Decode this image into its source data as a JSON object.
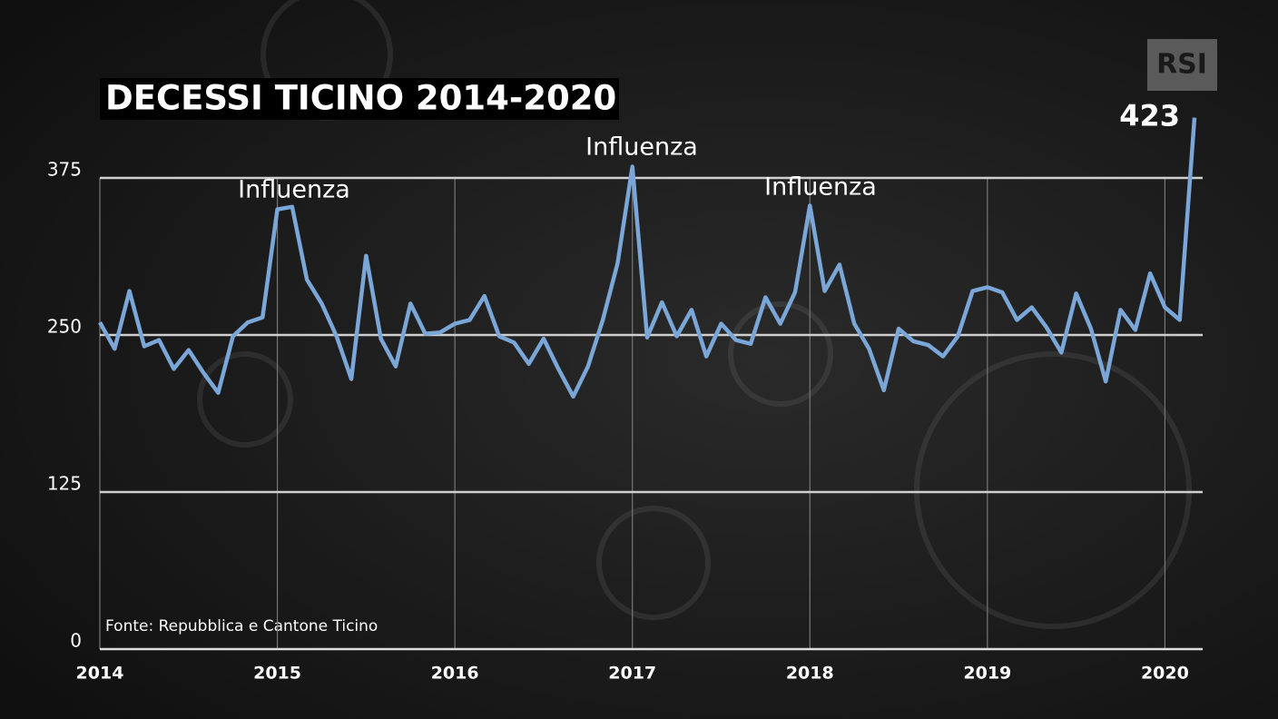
{
  "chart_data": {
    "type": "line",
    "title": "DECESSI TICINO 2014-2020",
    "source": "Fonte: Repubblica e Cantone Ticino",
    "logo": "RSI",
    "annotations": [
      "Influenza",
      "Influenza",
      "Influenza"
    ],
    "categories": [
      "2014",
      null,
      null,
      null,
      null,
      null,
      null,
      null,
      null,
      null,
      null,
      null,
      "2015",
      null,
      null,
      null,
      null,
      null,
      null,
      null,
      null,
      null,
      null,
      null,
      "2016",
      null,
      null,
      null,
      null,
      null,
      null,
      null,
      null,
      null,
      null,
      null,
      "2017",
      null,
      null,
      null,
      null,
      null,
      null,
      null,
      null,
      null,
      null,
      null,
      "2018",
      null,
      null,
      null,
      null,
      null,
      null,
      null,
      null,
      null,
      null,
      null,
      "2019",
      null,
      null,
      null,
      null,
      null,
      null,
      null,
      null,
      null,
      null,
      null,
      "2020",
      null,
      null
    ],
    "series": [
      {
        "name": "Decessi",
        "color": "#7ba6d8",
        "values": [
          260,
          239,
          285,
          241,
          246,
          223,
          238,
          220,
          204,
          249,
          260,
          264,
          350,
          352,
          294,
          275,
          249,
          215,
          313,
          247,
          225,
          275,
          251,
          252,
          259,
          262,
          281,
          249,
          244,
          227,
          247,
          223,
          201,
          225,
          262,
          307,
          384,
          248,
          276,
          249,
          270,
          233,
          259,
          246,
          243,
          280,
          259,
          284,
          353,
          285,
          306,
          259,
          239,
          206,
          255,
          245,
          242,
          233,
          249,
          285,
          288,
          284,
          262,
          272,
          256,
          236,
          283,
          255,
          213,
          270,
          254,
          299,
          272,
          262,
          423
        ],
        "value_labels": [
          null,
          null,
          null,
          null,
          null,
          null,
          null,
          null,
          null,
          null,
          null,
          null,
          null,
          null,
          null,
          null,
          null,
          null,
          null,
          null,
          null,
          null,
          null,
          null,
          null,
          null,
          null,
          null,
          null,
          null,
          null,
          null,
          null,
          null,
          null,
          null,
          null,
          null,
          null,
          null,
          null,
          null,
          null,
          null,
          null,
          null,
          null,
          null,
          null,
          null,
          null,
          null,
          null,
          null,
          null,
          null,
          null,
          null,
          null,
          null,
          null,
          null,
          null,
          null,
          null,
          null,
          null,
          null,
          null,
          null,
          null,
          null,
          null,
          null,
          "423"
        ]
      }
    ],
    "ylim": [
      0,
      375
    ],
    "yticks": [
      0,
      125,
      250,
      375
    ],
    "grid": true
  }
}
